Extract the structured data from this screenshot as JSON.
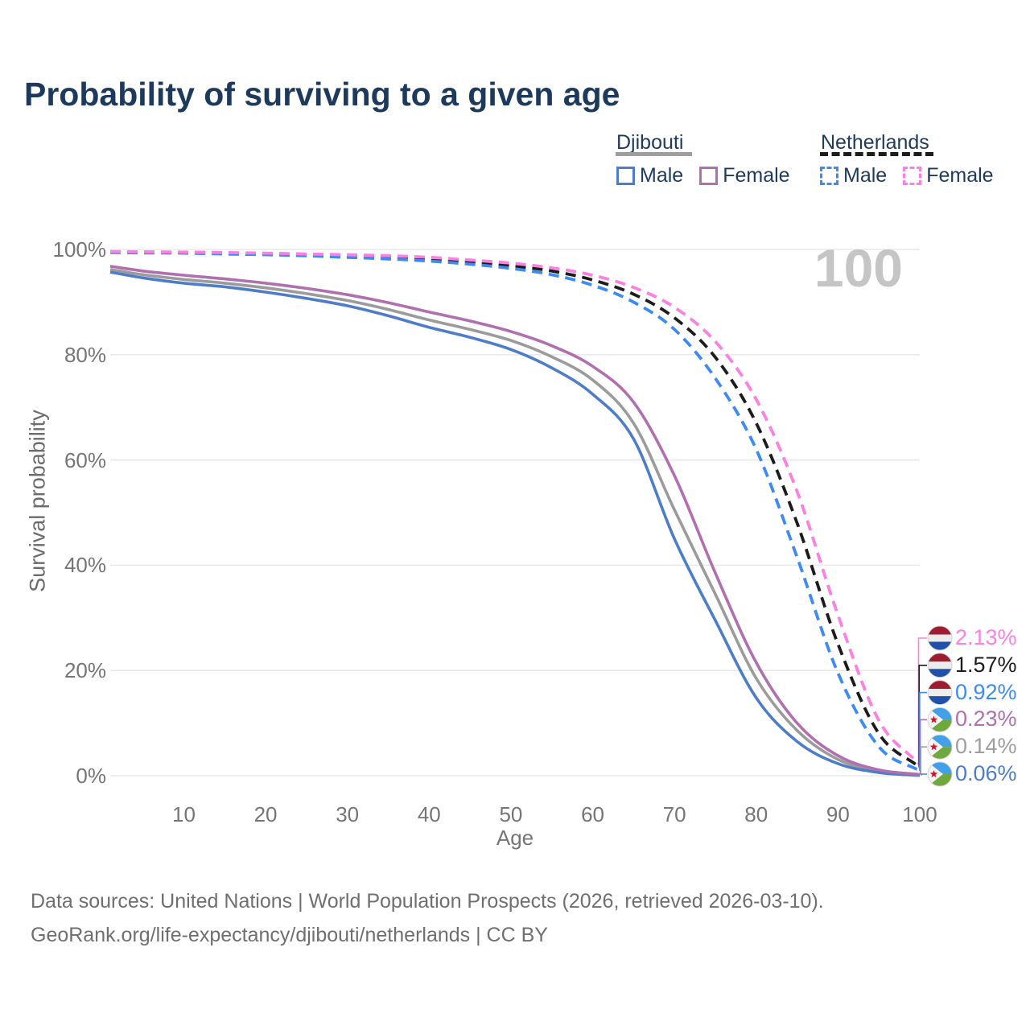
{
  "title": "Probability of surviving to a given age",
  "age_annotation": "100",
  "legend": {
    "groups": [
      {
        "label": "Djibouti",
        "line_style": "solid",
        "underline_color": "#9e9e9e",
        "items": [
          {
            "label": "Male",
            "color": "#4d7dc9"
          },
          {
            "label": "Female",
            "color": "#b06fae"
          }
        ]
      },
      {
        "label": "Netherlands",
        "line_style": "dashed",
        "underline_color": "#1c1c1c",
        "items": [
          {
            "label": "Male",
            "color": "#3d8bf2"
          },
          {
            "label": "Female",
            "color": "#fb80e2"
          }
        ]
      }
    ]
  },
  "axes": {
    "y_title": "Survival probability",
    "y_ticks": [
      "100%",
      "80%",
      "60%",
      "40%",
      "20%",
      "0%"
    ],
    "x_title": "Age",
    "x_ticks": [
      "10",
      "20",
      "30",
      "40",
      "50",
      "60",
      "70",
      "80",
      "90",
      "100"
    ]
  },
  "end_labels": [
    {
      "value": "2.13%",
      "color": "#fb80e2",
      "flag": "netherlands",
      "series": 5
    },
    {
      "value": "1.57%",
      "color": "#1c1c1c",
      "flag": "netherlands",
      "series": 3
    },
    {
      "value": "0.92%",
      "color": "#3d8bf2",
      "flag": "netherlands",
      "series": 4
    },
    {
      "value": "0.23%",
      "color": "#b06fae",
      "flag": "djibouti",
      "series": 2
    },
    {
      "value": "0.14%",
      "color": "#9e9e9e",
      "flag": "djibouti",
      "series": 0
    },
    {
      "value": "0.06%",
      "color": "#4d7dc9",
      "flag": "djibouti",
      "series": 1
    }
  ],
  "footer": {
    "line1": "Data sources: United Nations | World Population Prospects (2026, retrieved 2026-03-10).",
    "line2": "GeoRank.org/life-expectancy/djibouti/netherlands | CC BY"
  },
  "chart_data": {
    "type": "line",
    "title": "Probability of surviving to a given age",
    "xlabel": "Age",
    "ylabel": "Survival probability",
    "xlim": [
      1,
      100
    ],
    "ylim_percent": [
      0,
      100
    ],
    "grid": "horizontal",
    "legend_position": "top-right",
    "x": [
      1,
      5,
      10,
      15,
      20,
      25,
      30,
      35,
      40,
      45,
      50,
      55,
      60,
      65,
      70,
      75,
      80,
      85,
      90,
      95,
      100
    ],
    "series": [
      {
        "name": "Djibouti - Both sexes",
        "country": "Djibouti",
        "sex": "both",
        "color": "#9b9b9b",
        "dashed": false,
        "values": [
          96.2,
          95.2,
          94.3,
          93.6,
          92.7,
          91.6,
          90.3,
          88.6,
          86.6,
          84.8,
          82.7,
          79.6,
          75.2,
          67.0,
          50.5,
          34.5,
          18.5,
          8.6,
          3.1,
          0.85,
          0.14
        ]
      },
      {
        "name": "Djibouti - Male",
        "country": "Djibouti",
        "sex": "male",
        "color": "#4d7dc9",
        "dashed": false,
        "values": [
          95.7,
          94.6,
          93.6,
          92.9,
          91.9,
          90.7,
          89.3,
          87.4,
          85.2,
          83.3,
          81.0,
          77.5,
          72.5,
          64.0,
          45.0,
          29.5,
          14.8,
          6.5,
          2.3,
          0.6,
          0.06
        ]
      },
      {
        "name": "Djibouti - Female",
        "country": "Djibouti",
        "sex": "female",
        "color": "#b06fae",
        "dashed": false,
        "values": [
          96.8,
          95.9,
          95.1,
          94.4,
          93.6,
          92.6,
          91.4,
          89.9,
          88.1,
          86.4,
          84.4,
          81.7,
          77.8,
          71.0,
          57.0,
          38.5,
          21.5,
          10.0,
          3.8,
          1.1,
          0.23
        ]
      },
      {
        "name": "Netherlands - Both sexes",
        "country": "Netherlands",
        "sex": "both",
        "color": "#1c1c1c",
        "dashed": true,
        "values": [
          99.5,
          99.45,
          99.4,
          99.3,
          99.1,
          98.9,
          98.7,
          98.4,
          98.1,
          97.6,
          96.9,
          95.9,
          94.2,
          91.5,
          87.0,
          79.5,
          67.0,
          48.0,
          25.0,
          8.0,
          1.57
        ]
      },
      {
        "name": "Netherlands - Male",
        "country": "Netherlands",
        "sex": "male",
        "color": "#3d8bf2",
        "dashed": true,
        "values": [
          99.4,
          99.35,
          99.3,
          99.15,
          99.0,
          98.8,
          98.5,
          98.2,
          97.8,
          97.2,
          96.4,
          95.2,
          93.2,
          90.0,
          84.8,
          75.5,
          62.0,
          41.5,
          19.5,
          5.5,
          0.92
        ]
      },
      {
        "name": "Netherlands - Female",
        "country": "Netherlands",
        "sex": "female",
        "color": "#fb80e2",
        "dashed": true,
        "values": [
          99.6,
          99.55,
          99.5,
          99.4,
          99.3,
          99.15,
          99.0,
          98.8,
          98.5,
          98.0,
          97.4,
          96.5,
          95.1,
          92.8,
          89.0,
          82.5,
          71.5,
          54.0,
          30.5,
          10.5,
          2.13
        ]
      }
    ],
    "end_values_percent": {
      "netherlands_female": 2.13,
      "netherlands_both": 1.57,
      "netherlands_male": 0.92,
      "djibouti_female": 0.23,
      "djibouti_both": 0.14,
      "djibouti_male": 0.06
    }
  }
}
